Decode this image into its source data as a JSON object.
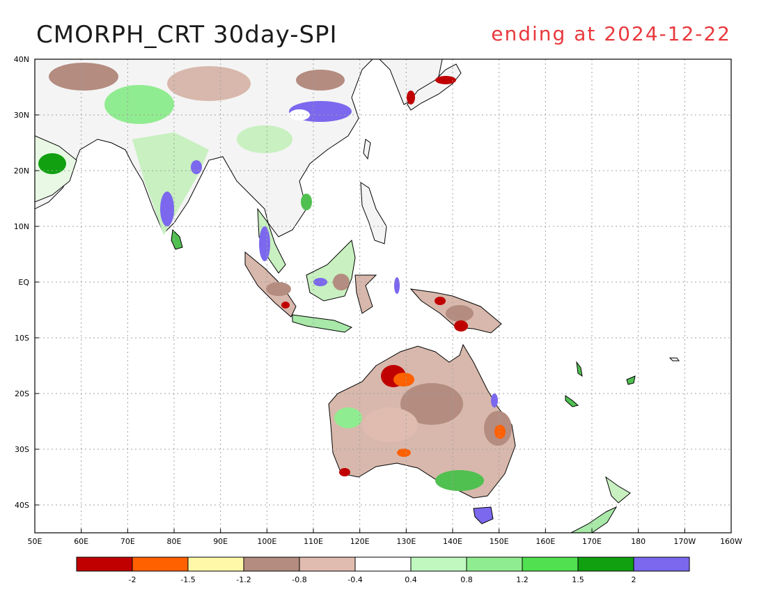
{
  "title": "CMORPH_CRT 30day-SPI",
  "subtitle": "ending at 2024-12-22",
  "map": {
    "lon_range": [
      50,
      200
    ],
    "lat_range": [
      -45,
      40
    ],
    "lon_ticks": [
      "50E",
      "60E",
      "70E",
      "80E",
      "90E",
      "100E",
      "110E",
      "120E",
      "130E",
      "140E",
      "150E",
      "160E",
      "170E",
      "180",
      "170W",
      "160W"
    ],
    "lat_ticks": [
      "40N",
      "30N",
      "20N",
      "10N",
      "EQ",
      "10S",
      "20S",
      "30S",
      "40S"
    ],
    "lat_tick_values": [
      40,
      30,
      20,
      10,
      0,
      -10,
      -20,
      -30,
      -40
    ],
    "ocean_color": "#ffffff",
    "coast_color": "#000000",
    "grid_color": "#a0a0a0"
  },
  "legend": {
    "colors": [
      "#c00000",
      "#ff6000",
      "#fff8a8",
      "#b48c80",
      "#e0bcb0",
      "#ffffff",
      "#c0f8c0",
      "#90ec90",
      "#50e050",
      "#10a010",
      "#7b68ee"
    ],
    "labels": [
      "-2",
      "-1.5",
      "-1.2",
      "-0.8",
      "-0.4",
      "0.4",
      "0.8",
      "1.2",
      "1.5",
      "2"
    ]
  }
}
